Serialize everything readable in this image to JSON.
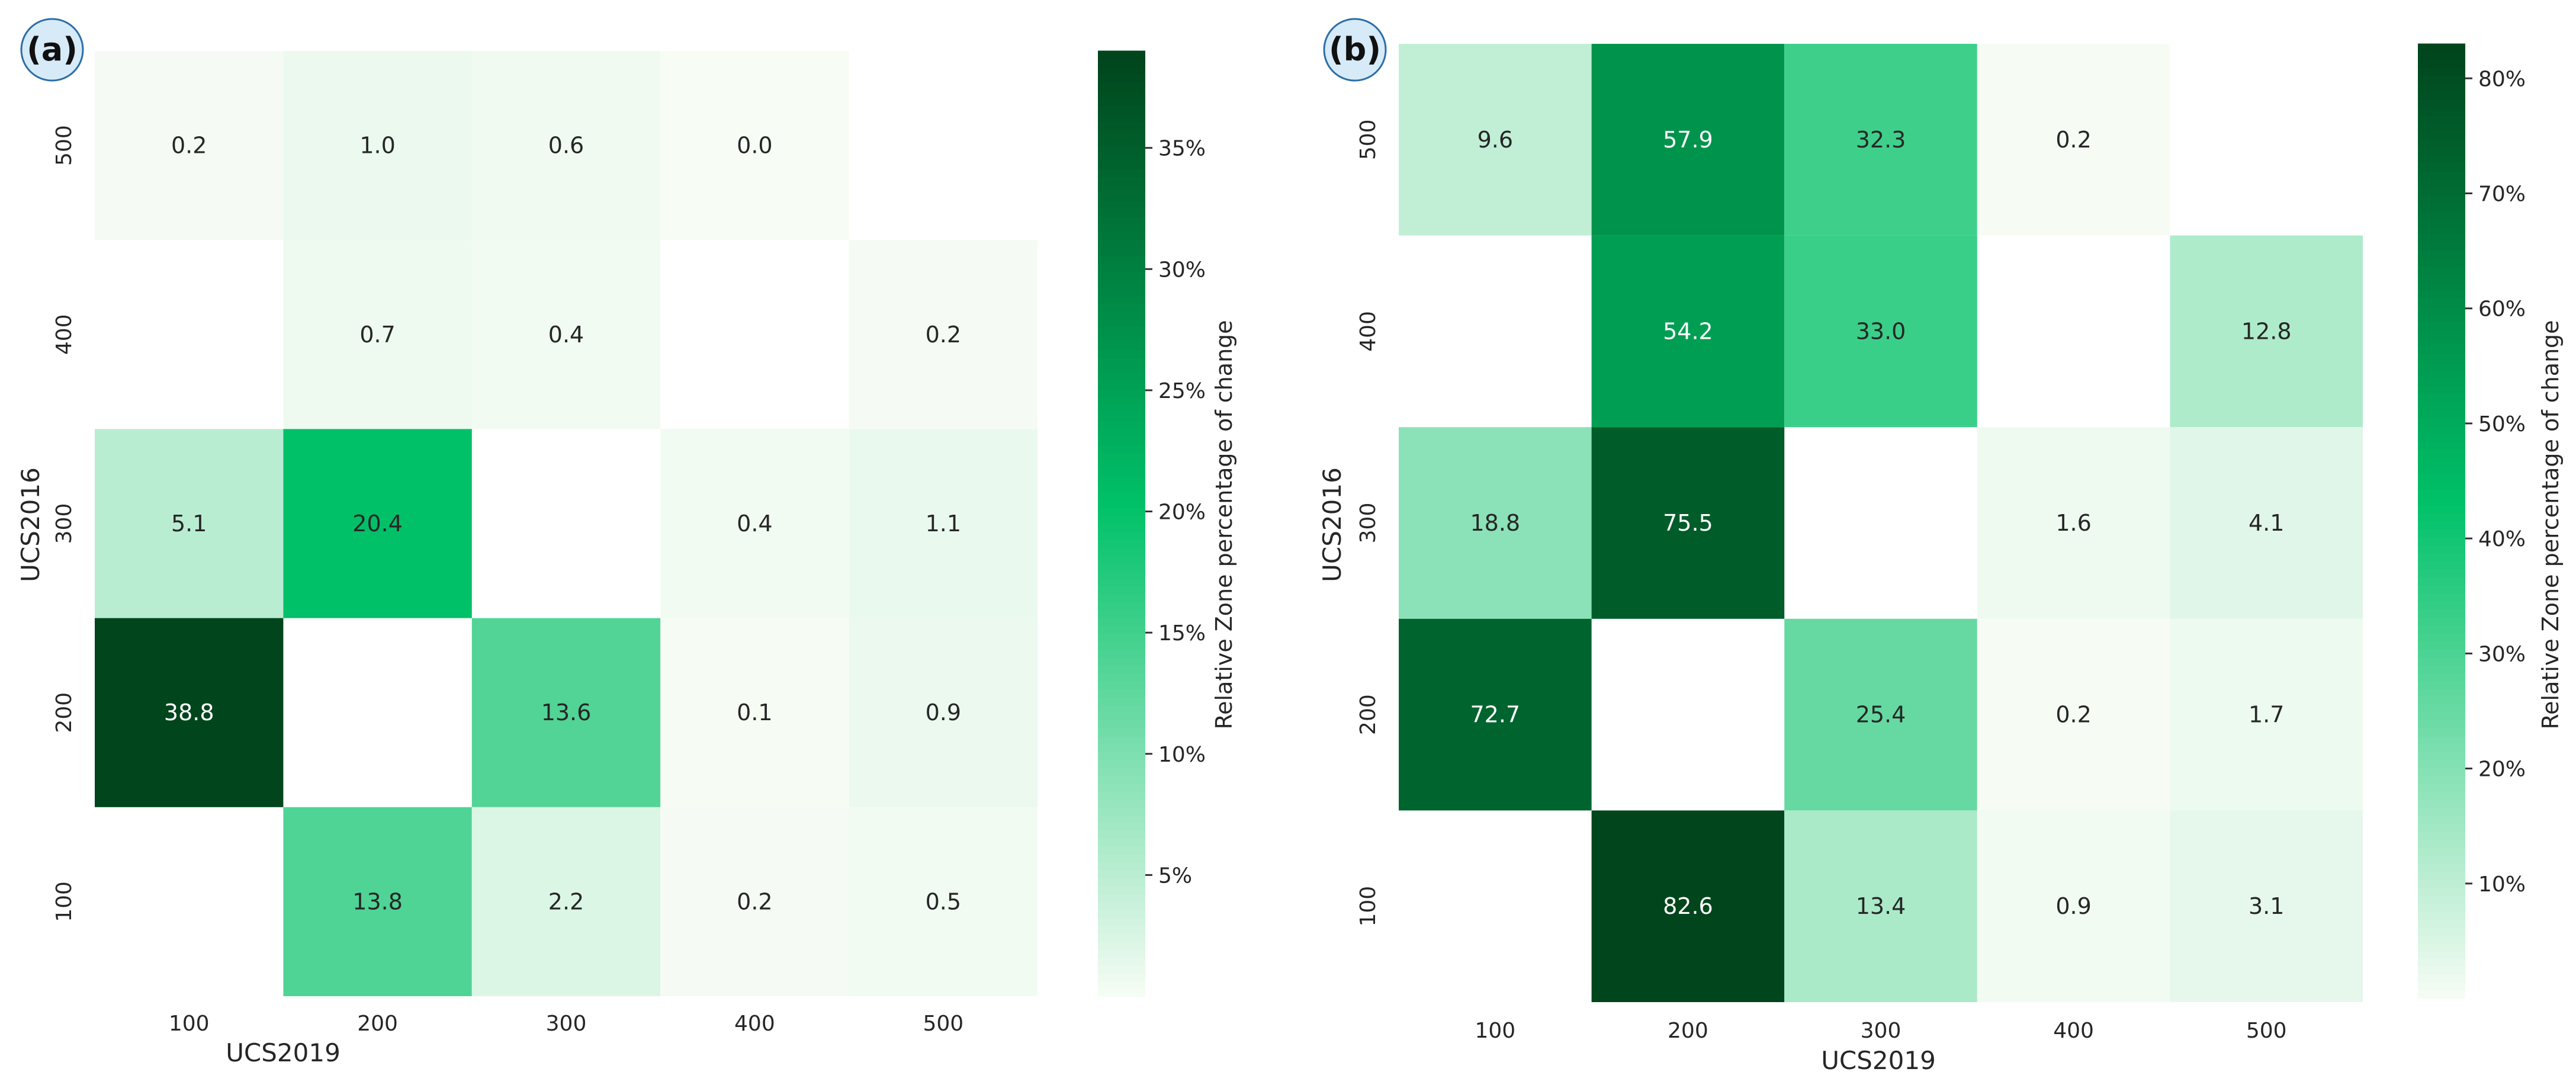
{
  "chart_data": [
    {
      "type": "heatmap",
      "panel_label": "(a)",
      "xlabel": "UCS2019",
      "ylabel": "UCS2016",
      "x_categories": [
        "100",
        "200",
        "300",
        "400",
        "500"
      ],
      "y_categories": [
        "500",
        "400",
        "300",
        "200",
        "100"
      ],
      "cells": [
        [
          0.2,
          1.0,
          0.6,
          0.0,
          null
        ],
        [
          null,
          0.7,
          0.4,
          null,
          0.2
        ],
        [
          5.1,
          20.4,
          null,
          0.4,
          1.1
        ],
        [
          38.8,
          null,
          13.6,
          0.1,
          0.9
        ],
        [
          null,
          13.8,
          2.2,
          0.2,
          0.5
        ]
      ],
      "cell_labels": [
        [
          "0.2",
          "1.0",
          "0.6",
          "0.0",
          ""
        ],
        [
          "",
          "0.7",
          "0.4",
          "",
          "0.2"
        ],
        [
          "5.1",
          "20.4",
          "",
          "0.4",
          "1.1"
        ],
        [
          "38.8",
          "",
          "13.6",
          "0.1",
          "0.9"
        ],
        [
          "",
          "13.8",
          "2.2",
          "0.2",
          "0.5"
        ]
      ],
      "colorbar": {
        "label": "Relative Zone percentage of change",
        "range": [
          0,
          39
        ],
        "ticks": [
          5,
          10,
          15,
          20,
          25,
          30,
          35
        ],
        "tick_labels": [
          "5%",
          "10%",
          "15%",
          "20%",
          "25%",
          "30%",
          "35%"
        ]
      }
    },
    {
      "type": "heatmap",
      "panel_label": "(b)",
      "xlabel": "UCS2019",
      "ylabel": "UCS2016",
      "x_categories": [
        "100",
        "200",
        "300",
        "400",
        "500"
      ],
      "y_categories": [
        "500",
        "400",
        "300",
        "200",
        "100"
      ],
      "cells": [
        [
          9.6,
          57.9,
          32.3,
          0.2,
          null
        ],
        [
          null,
          54.2,
          33.0,
          null,
          12.8
        ],
        [
          18.8,
          75.5,
          null,
          1.6,
          4.1
        ],
        [
          72.7,
          null,
          25.4,
          0.2,
          1.7
        ],
        [
          null,
          82.6,
          13.4,
          0.9,
          3.1
        ]
      ],
      "cell_labels": [
        [
          "9.6",
          "57.9",
          "32.3",
          "0.2",
          ""
        ],
        [
          "",
          "54.2",
          "33.0",
          "",
          "12.8"
        ],
        [
          "18.8",
          "75.5",
          "",
          "1.6",
          "4.1"
        ],
        [
          "72.7",
          "",
          "25.4",
          "0.2",
          "1.7"
        ],
        [
          "",
          "82.6",
          "13.4",
          "0.9",
          "3.1"
        ]
      ],
      "colorbar": {
        "label": "Relative Zone percentage of change",
        "range": [
          0,
          83
        ],
        "ticks": [
          10,
          20,
          30,
          40,
          50,
          60,
          70,
          80
        ],
        "tick_labels": [
          "10%",
          "20%",
          "30%",
          "40%",
          "50%",
          "60%",
          "70%",
          "80%"
        ]
      }
    }
  ],
  "colors": {
    "low": "#f7fcf5",
    "mid": "#00c168",
    "high": "#00441b",
    "text_dark": "#262626",
    "text_light": "#ffffff",
    "badge_fill": "#d7eaf8",
    "badge_stroke": "#2b6ea8"
  }
}
